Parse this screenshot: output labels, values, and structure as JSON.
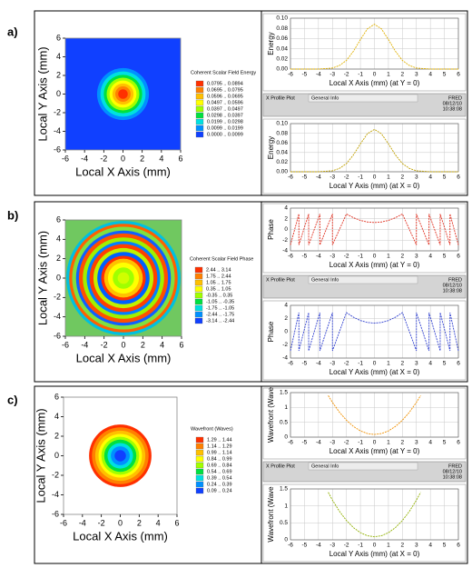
{
  "panels": [
    {
      "label": "a)",
      "info": {
        "plot": "X Profile Plot",
        "general": "General Info",
        "app": "FRED",
        "date": "08/12/10",
        "time": "10:38:08"
      }
    },
    {
      "label": "b)",
      "info": {
        "plot": "X Profile Plot",
        "general": "General Info",
        "app": "FRED",
        "date": "08/12/10",
        "time": "10:38:08"
      }
    },
    {
      "label": "c)",
      "info": {
        "plot": "X Profile Plot",
        "general": "General Info",
        "app": "FRED",
        "date": "08/12/10",
        "time": "10:38:08"
      }
    }
  ],
  "chart_data": [
    {
      "type": "heatmap",
      "x_label": "Local X Axis (mm)",
      "y_label": "Local Y Axis (mm)",
      "xlim": [
        -6,
        6
      ],
      "ylim": [
        -6,
        6
      ],
      "xticks": [
        -6,
        -4,
        -2,
        0,
        2,
        4,
        6
      ],
      "yticks": [
        -6,
        -4,
        -2,
        0,
        2,
        4,
        6
      ],
      "legend_title": "Coherent Scalar Field Energy",
      "levels": [
        {
          "label": "0.0795 .. 0.0894",
          "color": "#ff3000"
        },
        {
          "label": "0.0695 .. 0.0795",
          "color": "#ff8000"
        },
        {
          "label": "0.0596 .. 0.0695",
          "color": "#ffc000"
        },
        {
          "label": "0.0497 .. 0.0596",
          "color": "#ffff00"
        },
        {
          "label": "0.0397 .. 0.0497",
          "color": "#a0ff00"
        },
        {
          "label": "0.0298 .. 0.0397",
          "color": "#00e040"
        },
        {
          "label": "0.0199 .. 0.0298",
          "color": "#00e0e0"
        },
        {
          "label": "0.0099 .. 0.0199",
          "color": "#0090ff"
        },
        {
          "label": "0.0000 .. 0.0099",
          "color": "#1040ff"
        }
      ],
      "background": "#1040ff",
      "rings": [
        {
          "radius": 2.7,
          "color": "#0090ff"
        },
        {
          "radius": 2.35,
          "color": "#00e0e0"
        },
        {
          "radius": 2.0,
          "color": "#00e040"
        },
        {
          "radius": 1.7,
          "color": "#a0ff00"
        },
        {
          "radius": 1.4,
          "color": "#ffff00"
        },
        {
          "radius": 1.1,
          "color": "#ffc000"
        },
        {
          "radius": 0.8,
          "color": "#ff8000"
        },
        {
          "radius": 0.5,
          "color": "#ff3000"
        }
      ]
    },
    {
      "type": "profile",
      "x_label": "Local X Axis (mm) (at Y = 0)",
      "y_label": "Energy",
      "xlim": [
        -6,
        6
      ],
      "ylim": [
        0,
        0.1
      ],
      "xticks": [
        -6,
        -5,
        -4,
        -3,
        -2,
        -1,
        0,
        1,
        2,
        3,
        4,
        5,
        6
      ],
      "yticks": [
        {
          "value": 0,
          "label": "0.00"
        },
        {
          "value": 0.02,
          "label": "0.02"
        },
        {
          "value": 0.04,
          "label": "0.04"
        },
        {
          "value": 0.06,
          "label": "0.06"
        },
        {
          "value": 0.08,
          "label": "0.08"
        },
        {
          "value": 0.1,
          "label": "0.10"
        }
      ],
      "grid": true,
      "color": "#e0b000",
      "x": [
        -6,
        -5,
        -4,
        -3.5,
        -3,
        -2.5,
        -2,
        -1.5,
        -1,
        -0.5,
        0,
        0.5,
        1,
        1.5,
        2,
        2.5,
        3,
        3.5,
        4,
        5,
        6
      ],
      "values": [
        0,
        0,
        0,
        0.001,
        0.002,
        0.007,
        0.017,
        0.035,
        0.058,
        0.079,
        0.088,
        0.079,
        0.058,
        0.035,
        0.017,
        0.007,
        0.002,
        0.001,
        0,
        0,
        0
      ]
    },
    {
      "type": "profile",
      "x_label": "Local Y Axis (mm) (at X = 0)",
      "y_label": "Energy",
      "xlim": [
        -6,
        6
      ],
      "ylim": [
        0,
        0.1
      ],
      "xticks": [
        -6,
        -5,
        -4,
        -3,
        -2,
        -1,
        0,
        1,
        2,
        3,
        4,
        5,
        6
      ],
      "yticks": [
        {
          "value": 0,
          "label": "0.00"
        },
        {
          "value": 0.02,
          "label": "0.02"
        },
        {
          "value": 0.04,
          "label": "0.04"
        },
        {
          "value": 0.06,
          "label": "0.06"
        },
        {
          "value": 0.08,
          "label": "0.08"
        },
        {
          "value": 0.1,
          "label": "0.10"
        }
      ],
      "grid": true,
      "color": "#c0a000",
      "x": [
        -6,
        -5,
        -4,
        -3.5,
        -3,
        -2.5,
        -2,
        -1.5,
        -1,
        -0.5,
        0,
        0.5,
        1,
        1.5,
        2,
        2.5,
        3,
        3.5,
        4,
        5,
        6
      ],
      "values": [
        0,
        0,
        0,
        0.001,
        0.002,
        0.007,
        0.017,
        0.035,
        0.058,
        0.079,
        0.088,
        0.079,
        0.058,
        0.035,
        0.017,
        0.007,
        0.002,
        0.001,
        0,
        0,
        0
      ]
    },
    {
      "type": "heatmap",
      "x_label": "Local X Axis (mm)",
      "y_label": "Local Y Axis (mm)",
      "xlim": [
        -6,
        6
      ],
      "ylim": [
        -6,
        6
      ],
      "xticks": [
        -6,
        -4,
        -2,
        0,
        2,
        4,
        6
      ],
      "yticks": [
        -6,
        -4,
        -2,
        0,
        2,
        4,
        6
      ],
      "legend_title": "Coherent Scalar Field Phase",
      "levels": [
        {
          "label": "2.44 .. 3.14",
          "color": "#ff3000"
        },
        {
          "label": "1.75 .. 2.44",
          "color": "#ff8000"
        },
        {
          "label": "1.05 .. 1.75",
          "color": "#ffc000"
        },
        {
          "label": "0.35 .. 1.05",
          "color": "#ffff00"
        },
        {
          "label": "-0.35 .. 0.35",
          "color": "#a0ff00"
        },
        {
          "label": "-1.05 .. -0.35",
          "color": "#00e040"
        },
        {
          "label": "-1.75 .. -1.05",
          "color": "#00e0e0"
        },
        {
          "label": "-2.44 .. -1.75",
          "color": "#0090ff"
        },
        {
          "label": "-3.14 .. -2.44",
          "color": "#1040ff"
        }
      ],
      "background": "#70c860",
      "rings": [
        {
          "radius": 5.9,
          "color": "#00c0e0"
        },
        {
          "radius": 5.6,
          "color": "#ff6000"
        },
        {
          "radius": 5.3,
          "color": "#80e040"
        },
        {
          "radius": 4.9,
          "color": "#1060ff"
        },
        {
          "radius": 4.6,
          "color": "#ff5000"
        },
        {
          "radius": 4.2,
          "color": "#a0f000"
        },
        {
          "radius": 3.8,
          "color": "#0080ff"
        },
        {
          "radius": 3.5,
          "color": "#ff4000"
        },
        {
          "radius": 3.1,
          "color": "#c0f000"
        },
        {
          "radius": 2.7,
          "color": "#0060ff"
        },
        {
          "radius": 2.3,
          "color": "#ff3000"
        },
        {
          "radius": 2.0,
          "color": "#ffc000"
        },
        {
          "radius": 1.6,
          "color": "#ffff00"
        },
        {
          "radius": 1.1,
          "color": "#a0ff00"
        },
        {
          "radius": 0.6,
          "color": "#d0ff00"
        }
      ]
    },
    {
      "type": "profile",
      "x_label": "Local X Axis (mm) (at Y = 0)",
      "y_label": "Phase",
      "xlim": [
        -6,
        6
      ],
      "ylim": [
        -4,
        4
      ],
      "xticks": [
        -6,
        -5,
        -4,
        -3,
        -2,
        -1,
        0,
        1,
        2,
        3,
        4,
        5,
        6
      ],
      "yticks": [
        -4,
        -2,
        0,
        2,
        4
      ],
      "grid": true,
      "color": "#e03020",
      "x": [
        -6.0,
        -5.4,
        -5.4,
        -4.7,
        -4.7,
        -3.9,
        -3.9,
        -3.0,
        -3.0,
        -2.0,
        -1.5,
        -1.0,
        -0.5,
        0,
        0.5,
        1.0,
        1.5,
        2.0,
        3.0,
        3.0,
        3.9,
        3.9,
        4.7,
        4.7,
        5.4,
        5.4,
        6.0
      ],
      "values": [
        -2.9,
        2.9,
        -2.9,
        2.9,
        -2.9,
        2.9,
        -2.9,
        2.9,
        -2.9,
        2.9,
        2.2,
        1.7,
        1.4,
        1.3,
        1.4,
        1.7,
        2.2,
        2.9,
        -2.9,
        2.9,
        -2.9,
        2.9,
        -2.9,
        2.9,
        -2.9,
        2.9,
        -2.9
      ]
    },
    {
      "type": "profile",
      "x_label": "Local Y Axis (mm) (at X = 0)",
      "y_label": "Phase",
      "xlim": [
        -6,
        6
      ],
      "ylim": [
        -4,
        4
      ],
      "xticks": [
        -6,
        -5,
        -4,
        -3,
        -2,
        -1,
        0,
        1,
        2,
        3,
        4,
        5,
        6
      ],
      "yticks": [
        -4,
        -2,
        0,
        2,
        4
      ],
      "grid": true,
      "color": "#3040d0",
      "x": [
        -6.0,
        -5.4,
        -5.4,
        -4.7,
        -4.7,
        -3.9,
        -3.9,
        -3.0,
        -3.0,
        -2.0,
        -1.5,
        -1.0,
        -0.5,
        0,
        0.5,
        1.0,
        1.5,
        2.0,
        3.0,
        3.0,
        3.9,
        3.9,
        4.7,
        4.7,
        5.4,
        5.4,
        6.0
      ],
      "values": [
        -2.9,
        2.9,
        -2.9,
        2.9,
        -2.9,
        2.9,
        -2.9,
        2.9,
        -2.9,
        2.9,
        2.2,
        1.7,
        1.4,
        1.3,
        1.4,
        1.7,
        2.2,
        2.9,
        -2.9,
        2.9,
        -2.9,
        2.9,
        -2.9,
        2.9,
        -2.9,
        2.9,
        -2.9
      ]
    },
    {
      "type": "heatmap",
      "x_label": "Local X Axis (mm)",
      "y_label": "Local Y Axis (mm)",
      "xlim": [
        -6,
        6
      ],
      "ylim": [
        -6,
        6
      ],
      "xticks": [
        -6,
        -4,
        -2,
        0,
        2,
        4,
        6
      ],
      "yticks": [
        -6,
        -4,
        -2,
        0,
        2,
        4,
        6
      ],
      "legend_title": "Wavefront (Waves)",
      "levels": [
        {
          "label": "1.29 .. 1.44",
          "color": "#ff3000"
        },
        {
          "label": "1.14 .. 1.29",
          "color": "#ff8000"
        },
        {
          "label": "0.99 .. 1.14",
          "color": "#ffc000"
        },
        {
          "label": "0.84 .. 0.99",
          "color": "#ffff00"
        },
        {
          "label": "0.69 .. 0.84",
          "color": "#a0ff00"
        },
        {
          "label": "0.54 .. 0.69",
          "color": "#00e040"
        },
        {
          "label": "0.39 .. 0.54",
          "color": "#00e0e0"
        },
        {
          "label": "0.24 .. 0.39",
          "color": "#0090ff"
        },
        {
          "label": "0.09 .. 0.24",
          "color": "#1040ff"
        }
      ],
      "background": "#ffffff",
      "rings": [
        {
          "radius": 3.3,
          "color": "#ff3000"
        },
        {
          "radius": 3.0,
          "color": "#ff8000"
        },
        {
          "radius": 2.65,
          "color": "#ffc000"
        },
        {
          "radius": 2.3,
          "color": "#ffff00"
        },
        {
          "radius": 2.0,
          "color": "#a0ff00"
        },
        {
          "radius": 1.7,
          "color": "#00e040"
        },
        {
          "radius": 1.35,
          "color": "#00e0e0"
        },
        {
          "radius": 1.0,
          "color": "#0090ff"
        },
        {
          "radius": 0.6,
          "color": "#1040ff"
        }
      ]
    },
    {
      "type": "profile",
      "x_label": "Local X Axis (mm) (at Y = 0)",
      "y_label": "Wavefront (Wave",
      "xlim": [
        -6,
        6
      ],
      "ylim": [
        0,
        1.5
      ],
      "xticks": [
        -6,
        -5,
        -4,
        -3,
        -2,
        -1,
        0,
        1,
        2,
        3,
        4,
        5,
        6
      ],
      "yticks": [
        0,
        0.5,
        1,
        1.5
      ],
      "grid": true,
      "color": "#f09000",
      "x": [
        -3.3,
        -3,
        -2.5,
        -2,
        -1.5,
        -1,
        -0.5,
        0,
        0.5,
        1,
        1.5,
        2,
        2.5,
        3,
        3.3
      ],
      "values": [
        1.4,
        1.17,
        0.84,
        0.57,
        0.36,
        0.21,
        0.12,
        0.09,
        0.12,
        0.21,
        0.36,
        0.57,
        0.84,
        1.17,
        1.4
      ]
    },
    {
      "type": "profile",
      "x_label": "Local Y Axis (mm) (at X = 0)",
      "y_label": "Wavefront (Wave",
      "xlim": [
        -6,
        6
      ],
      "ylim": [
        0,
        1.5
      ],
      "xticks": [
        -6,
        -5,
        -4,
        -3,
        -2,
        -1,
        0,
        1,
        2,
        3,
        4,
        5,
        6
      ],
      "yticks": [
        0,
        0.5,
        1,
        1.5
      ],
      "grid": true,
      "color": "#90b000",
      "x": [
        -3.3,
        -3,
        -2.5,
        -2,
        -1.5,
        -1,
        -0.5,
        0,
        0.5,
        1,
        1.5,
        2,
        2.5,
        3,
        3.3
      ],
      "values": [
        1.4,
        1.17,
        0.84,
        0.57,
        0.36,
        0.21,
        0.12,
        0.09,
        0.12,
        0.21,
        0.36,
        0.57,
        0.84,
        1.17,
        1.4
      ]
    }
  ]
}
